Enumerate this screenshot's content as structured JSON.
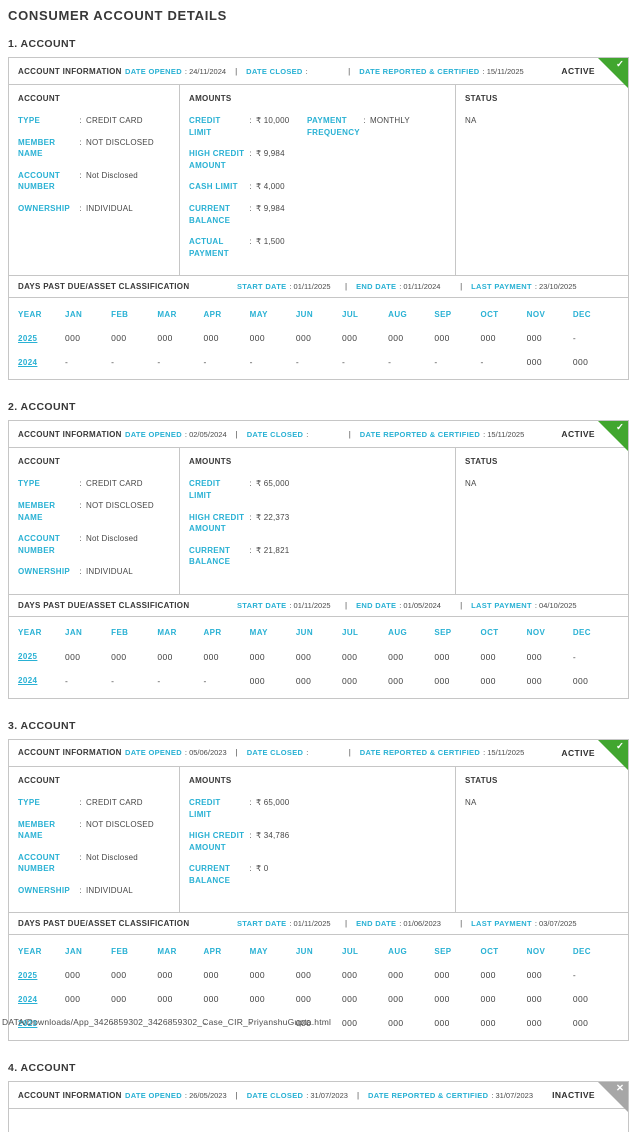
{
  "page": {
    "title": "CONSUMER ACCOUNT DETAILS",
    "footer_path": "DATA/Downloads/App_3426859302_3426859302_Case_CIR_PriyanshuGupta.html"
  },
  "colors": {
    "accent_cyan": "#29b1d4",
    "active_green": "#41a62f",
    "inactive_gray": "#a7a7a7",
    "border_gray": "#c6c6c6",
    "heading_text": "#383838",
    "body_text": "#4a4a4a"
  },
  "labels": {
    "account_information": "ACCOUNT INFORMATION",
    "date_opened": "DATE OPENED",
    "date_closed": "DATE CLOSED",
    "date_reported_certified": "DATE REPORTED & CERTIFIED",
    "account": "ACCOUNT",
    "amounts": "AMOUNTS",
    "status": "STATUS",
    "dpd_title": "DAYS PAST DUE/ASSET CLASSIFICATION",
    "start_date": "START DATE",
    "end_date": "END DATE",
    "last_payment": "LAST PAYMENT",
    "year": "YEAR"
  },
  "icons": {
    "check": "✓",
    "close": "✕"
  },
  "months": [
    "JAN",
    "FEB",
    "MAR",
    "APR",
    "MAY",
    "JUN",
    "JUL",
    "AUG",
    "SEP",
    "OCT",
    "NOV",
    "DEC"
  ],
  "accounts": [
    {
      "heading": "1. ACCOUNT",
      "badge": "ACTIVE",
      "state": "active",
      "badge_icon": "check",
      "date_opened": "24/11/2024",
      "date_closed": "",
      "date_reported_certified": "15/11/2025",
      "account_fields": [
        {
          "label": "TYPE",
          "value": "CREDIT CARD"
        },
        {
          "label": "MEMBER NAME",
          "value": "NOT DISCLOSED"
        },
        {
          "label": "ACCOUNT NUMBER",
          "value": "Not Disclosed"
        },
        {
          "label": "OWNERSHIP",
          "value": "INDIVIDUAL"
        }
      ],
      "amount_fields": [
        {
          "label": "CREDIT LIMIT",
          "value": "₹ 10,000"
        },
        {
          "label": "HIGH CREDIT AMOUNT",
          "value": "₹ 9,984"
        },
        {
          "label": "CASH LIMIT",
          "value": "₹ 4,000"
        },
        {
          "label": "CURRENT BALANCE",
          "value": "₹ 9,984"
        },
        {
          "label": "ACTUAL PAYMENT",
          "value": "₹ 1,500"
        }
      ],
      "amount_side_fields": [
        {
          "label": "PAYMENT FREQUENCY",
          "value": "MONTHLY"
        }
      ],
      "status_value": "NA",
      "dpd": {
        "start_date": "01/11/2025",
        "end_date": "01/11/2024",
        "last_payment": "23/10/2025",
        "rows": [
          {
            "year": "2025",
            "values": [
              "000",
              "000",
              "000",
              "000",
              "000",
              "000",
              "000",
              "000",
              "000",
              "000",
              "000",
              "-"
            ]
          },
          {
            "year": "2024",
            "values": [
              "-",
              "-",
              "-",
              "-",
              "-",
              "-",
              "-",
              "-",
              "-",
              "-",
              "000",
              "000"
            ]
          }
        ]
      },
      "truncated": false
    },
    {
      "heading": "2. ACCOUNT",
      "badge": "ACTIVE",
      "state": "active",
      "badge_icon": "check",
      "date_opened": "02/05/2024",
      "date_closed": "",
      "date_reported_certified": "15/11/2025",
      "account_fields": [
        {
          "label": "TYPE",
          "value": "CREDIT CARD"
        },
        {
          "label": "MEMBER NAME",
          "value": "NOT DISCLOSED"
        },
        {
          "label": "ACCOUNT NUMBER",
          "value": "Not Disclosed"
        },
        {
          "label": "OWNERSHIP",
          "value": "INDIVIDUAL"
        }
      ],
      "amount_fields": [
        {
          "label": "CREDIT LIMIT",
          "value": "₹ 65,000"
        },
        {
          "label": "HIGH CREDIT AMOUNT",
          "value": "₹ 22,373"
        },
        {
          "label": "CURRENT BALANCE",
          "value": "₹ 21,821"
        }
      ],
      "amount_side_fields": [],
      "status_value": "NA",
      "dpd": {
        "start_date": "01/11/2025",
        "end_date": "01/05/2024",
        "last_payment": "04/10/2025",
        "rows": [
          {
            "year": "2025",
            "values": [
              "000",
              "000",
              "000",
              "000",
              "000",
              "000",
              "000",
              "000",
              "000",
              "000",
              "000",
              "-"
            ]
          },
          {
            "year": "2024",
            "values": [
              "-",
              "-",
              "-",
              "-",
              "000",
              "000",
              "000",
              "000",
              "000",
              "000",
              "000",
              "000"
            ]
          }
        ]
      },
      "truncated": false
    },
    {
      "heading": "3. ACCOUNT",
      "badge": "ACTIVE",
      "state": "active",
      "badge_icon": "check",
      "date_opened": "05/06/2023",
      "date_closed": "",
      "date_reported_certified": "15/11/2025",
      "account_fields": [
        {
          "label": "TYPE",
          "value": "CREDIT CARD"
        },
        {
          "label": "MEMBER NAME",
          "value": "NOT DISCLOSED"
        },
        {
          "label": "ACCOUNT NUMBER",
          "value": "Not Disclosed"
        },
        {
          "label": "OWNERSHIP",
          "value": "INDIVIDUAL"
        }
      ],
      "amount_fields": [
        {
          "label": "CREDIT LIMIT",
          "value": "₹ 65,000"
        },
        {
          "label": "HIGH CREDIT AMOUNT",
          "value": "₹ 34,786"
        },
        {
          "label": "CURRENT BALANCE",
          "value": "₹ 0"
        }
      ],
      "amount_side_fields": [],
      "status_value": "NA",
      "dpd": {
        "start_date": "01/11/2025",
        "end_date": "01/06/2023",
        "last_payment": "03/07/2025",
        "rows": [
          {
            "year": "2025",
            "values": [
              "000",
              "000",
              "000",
              "000",
              "000",
              "000",
              "000",
              "000",
              "000",
              "000",
              "000",
              "-"
            ]
          },
          {
            "year": "2024",
            "values": [
              "000",
              "000",
              "000",
              "000",
              "000",
              "000",
              "000",
              "000",
              "000",
              "000",
              "000",
              "000"
            ]
          },
          {
            "year": "2023",
            "values": [
              "-",
              "-",
              "-",
              "-",
              "-",
              "000",
              "000",
              "000",
              "000",
              "000",
              "000",
              "000"
            ]
          }
        ]
      },
      "truncated": false
    },
    {
      "heading": "4. ACCOUNT",
      "badge": "INACTIVE",
      "state": "inactive",
      "badge_icon": "close",
      "date_opened": "26/05/2023",
      "date_closed": "31/07/2023",
      "date_reported_certified": "31/07/2023",
      "truncated": true
    }
  ]
}
